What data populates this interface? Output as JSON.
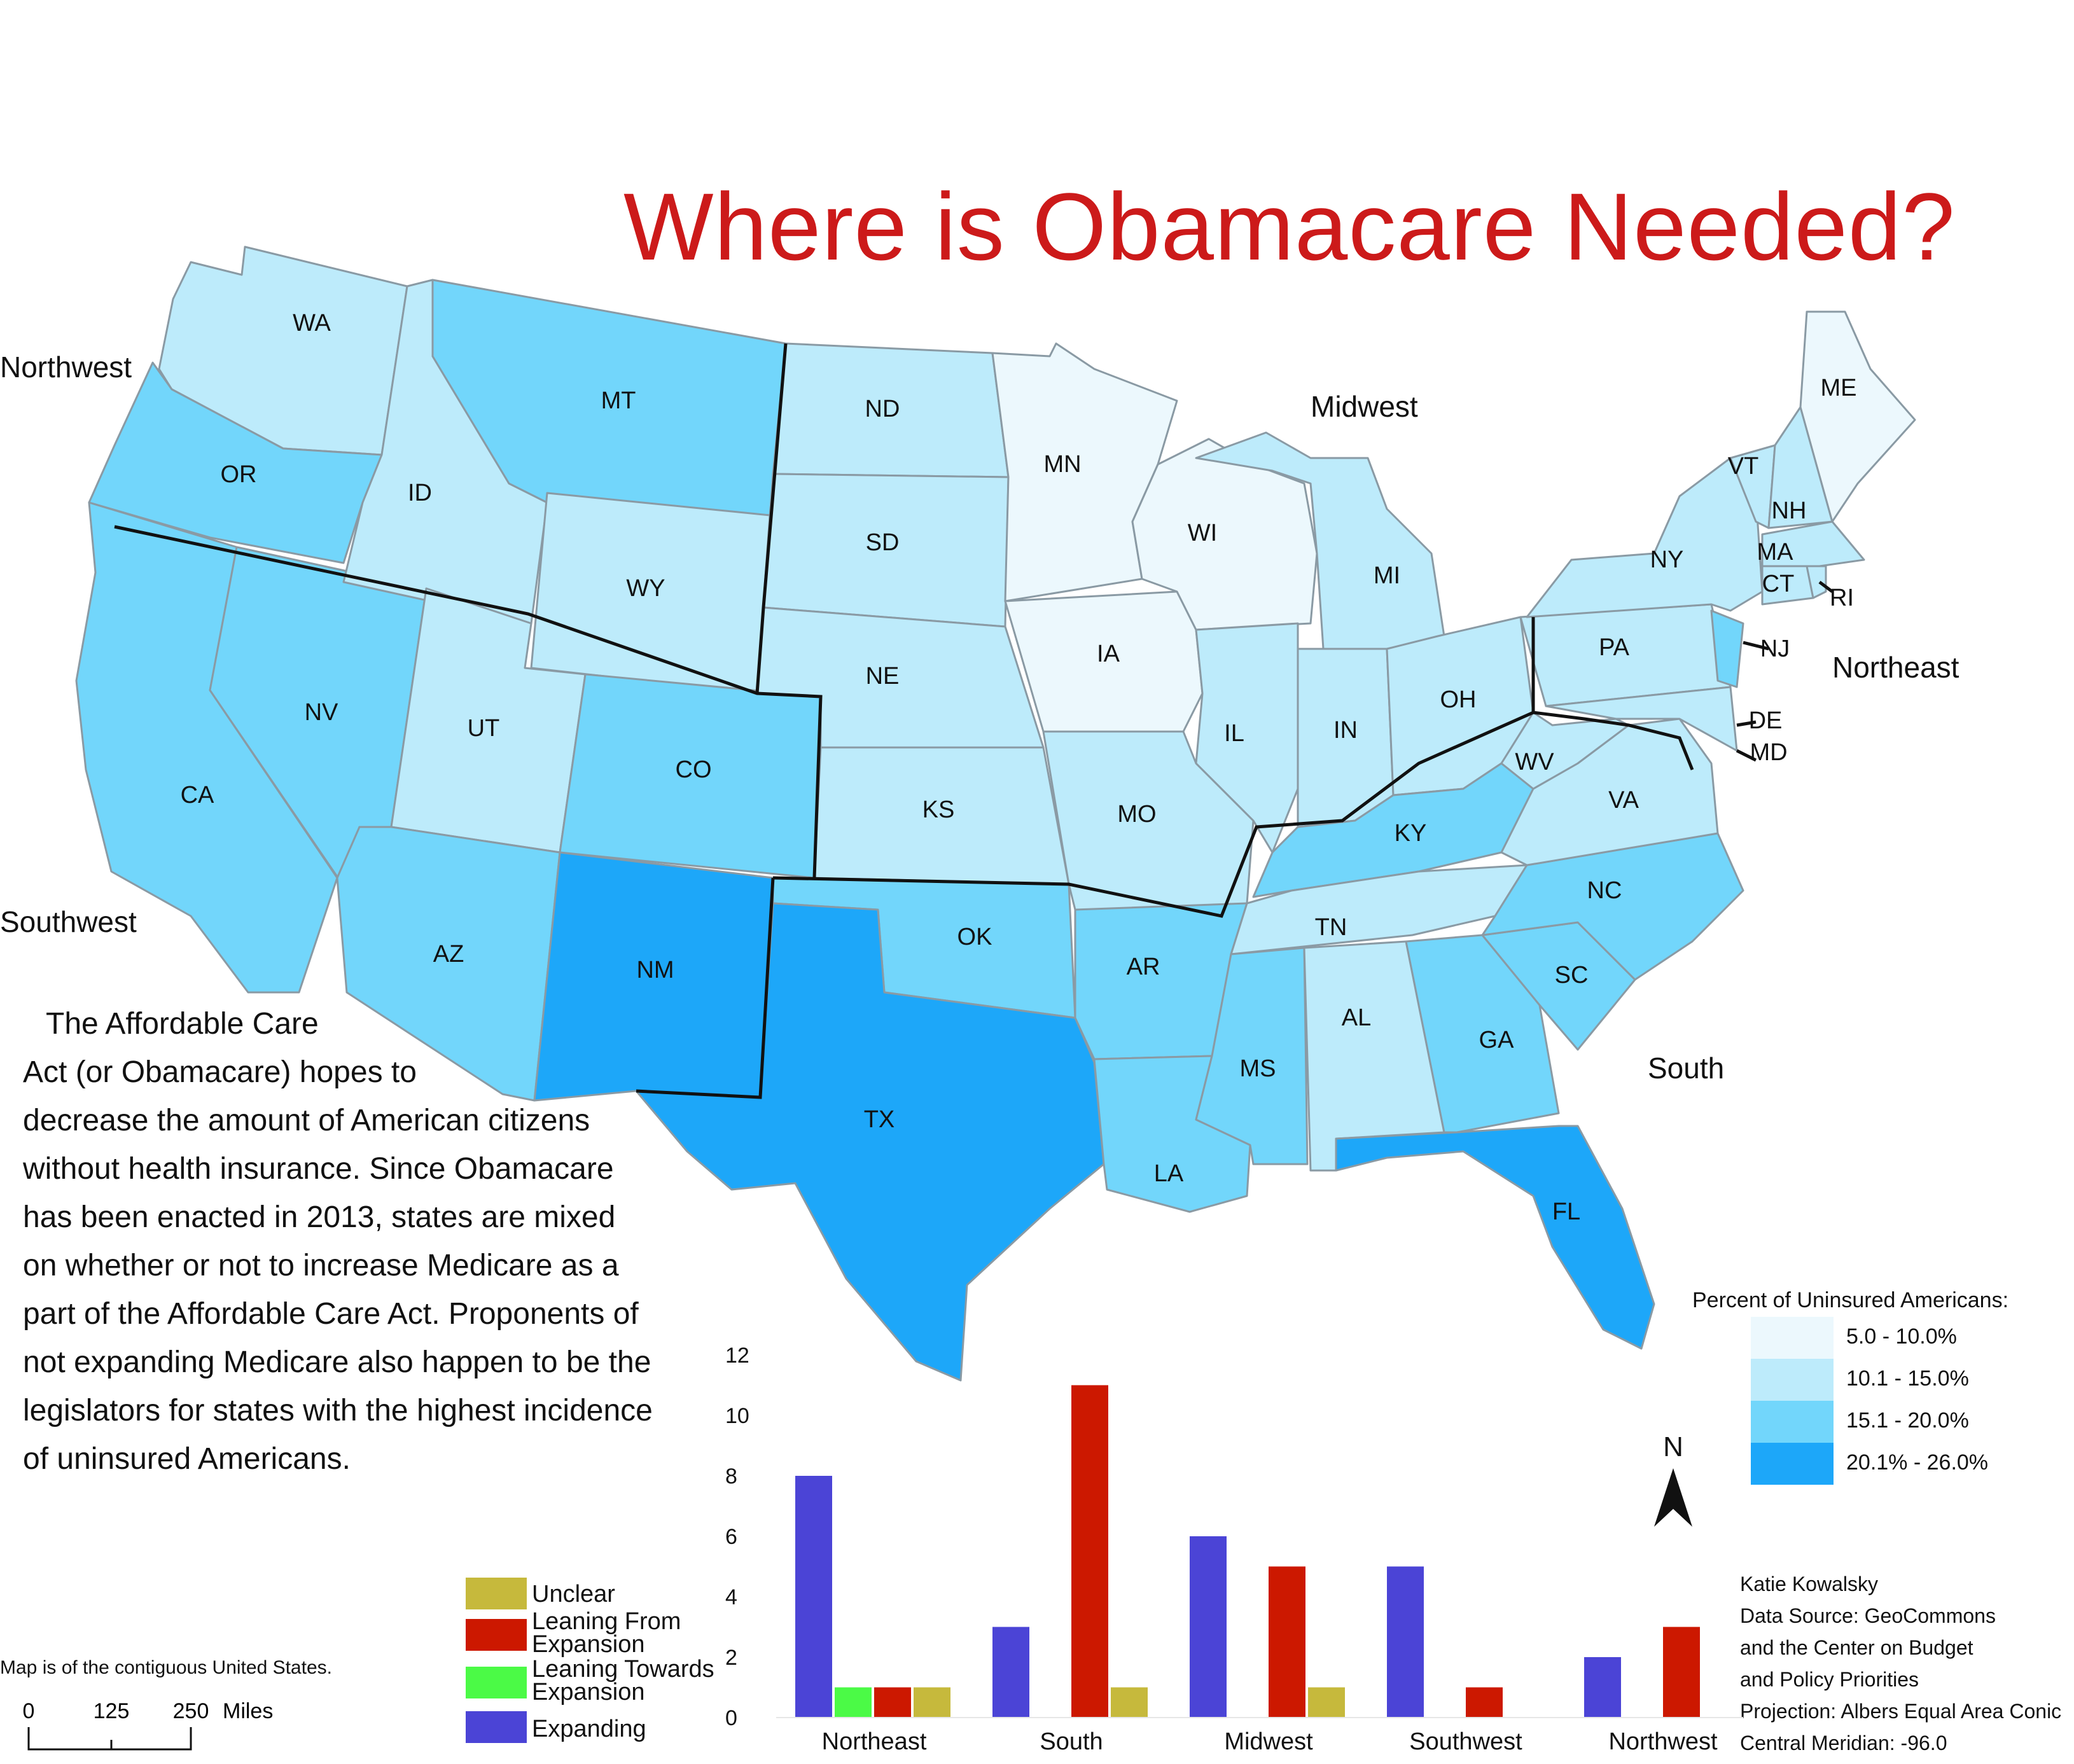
{
  "title": "Where is Obamacare Needed?",
  "regions": {
    "northwest": "Northwest",
    "midwest": "Midwest",
    "northeast": "Northeast",
    "southwest": "Southwest",
    "south": "South"
  },
  "states": [
    "WA",
    "OR",
    "ID",
    "MT",
    "WY",
    "ND",
    "SD",
    "NE",
    "KS",
    "MN",
    "WI",
    "IA",
    "MO",
    "IL",
    "IN",
    "MI",
    "OH",
    "NY",
    "PA",
    "VT",
    "NH",
    "ME",
    "MA",
    "CT",
    "RI",
    "NJ",
    "DE",
    "MD",
    "WV",
    "VA",
    "KY",
    "TN",
    "NC",
    "SC",
    "GA",
    "AL",
    "MS",
    "AR",
    "LA",
    "OK",
    "TX",
    "NM",
    "CO",
    "UT",
    "AZ",
    "NV",
    "CA",
    "FL"
  ],
  "colors": {
    "c1": "#ecf8fd",
    "c2": "#bdebfb",
    "c3": "#72d6fb",
    "c4": "#1da7f9",
    "unclear": "#c6b93c",
    "leaning_from": "#cc1800",
    "leaning_towards": "#4bfa46",
    "expanding": "#4b44d6"
  },
  "paragraph": {
    "lines": [
      "The Affordable Care",
      "Act (or Obamacare) hopes to",
      "decrease the amount of American citizens",
      "without health insurance. Since Obamacare",
      "has been enacted in 2013, states are mixed",
      "on whether or not to increase Medicare as a",
      "part of the Affordable Care Act. Proponents of",
      "not expanding Medicare also happen to be the",
      "legislators for states with the highest incidence",
      "of uninsured Americans."
    ]
  },
  "map_legend": {
    "title": "Percent of Uninsured Americans:",
    "items": [
      {
        "label": "5.0 - 10.0%",
        "color": "#ecf8fd"
      },
      {
        "label": "10.1 - 15.0%",
        "color": "#bdebfb"
      },
      {
        "label": "15.1 - 20.0%",
        "color": "#72d6fb"
      },
      {
        "label": "20.1% - 26.0%",
        "color": "#1da7f9"
      }
    ]
  },
  "north_arrow": "N",
  "credits": [
    "Katie Kowalsky",
    "Data Source: GeoCommons",
    "and the Center on Budget",
    "and Policy Priorities",
    "Projection: Albers Equal Area Conic",
    "Central Meridian: -96.0"
  ],
  "scale": {
    "note": "Map is of the contiguous United States.",
    "ticks": [
      "0",
      "125",
      "250"
    ],
    "unit": "Miles"
  },
  "chart_legend": [
    {
      "label": "Unclear",
      "color": "#c6b93c"
    },
    {
      "label": "Leaning From\nExpansion",
      "color": "#cc1800"
    },
    {
      "label": "Leaning Towards\nExpansion",
      "color": "#4bfa46"
    },
    {
      "label": "Expanding",
      "color": "#4b44d6"
    }
  ],
  "chart_data": {
    "type": "bar",
    "categories": [
      "Northeast",
      "South",
      "Midwest",
      "Southwest",
      "Northwest"
    ],
    "series": [
      {
        "name": "Expanding",
        "color": "#4b44d6",
        "values": [
          8,
          3,
          6,
          5,
          2
        ]
      },
      {
        "name": "Leaning Towards Expansion",
        "color": "#4bfa46",
        "values": [
          1,
          0,
          0,
          0,
          0
        ]
      },
      {
        "name": "Leaning From Expansion",
        "color": "#cc1800",
        "values": [
          1,
          11,
          5,
          1,
          3
        ]
      },
      {
        "name": "Unclear",
        "color": "#c6b93c",
        "values": [
          1,
          1,
          1,
          0,
          0
        ]
      }
    ],
    "yticks": [
      "0",
      "2",
      "4",
      "6",
      "8",
      "10",
      "12"
    ],
    "ylim": [
      0,
      12
    ],
    "grid": false
  }
}
